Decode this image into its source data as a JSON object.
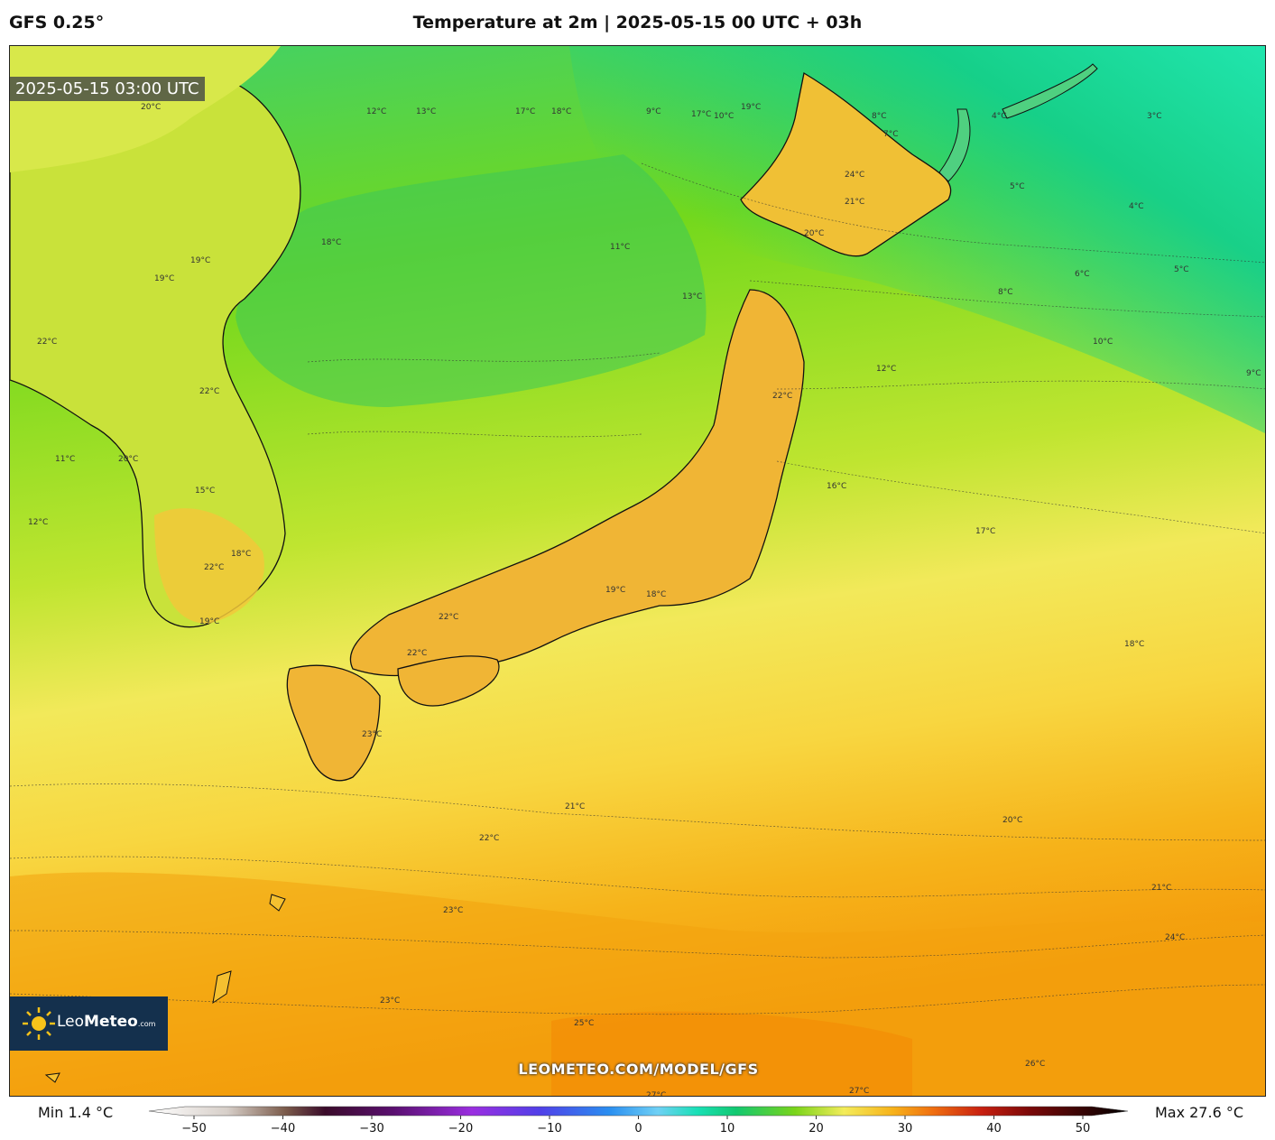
{
  "header": {
    "model": "GFS 0.25°",
    "title": "Temperature at 2m | 2025-05-15 00 UTC + 03h"
  },
  "map": {
    "valid_time": "2025-05-15 03:00 UTC",
    "watermark_url": "LEOMETEO.COM/MODEL/GFS",
    "logo": {
      "brand_a": "Leo",
      "brand_b": "Meteo",
      "suffix": ".com"
    },
    "isotherm_labels": [
      "20°C",
      "12°C",
      "13°C",
      "17°C",
      "18°C",
      "19°C",
      "17°C",
      "10°C",
      "9°C",
      "8°C",
      "7°C",
      "4°C",
      "3°C",
      "22°C",
      "20°C",
      "19°C",
      "18°C",
      "11°C",
      "13°C",
      "24°C",
      "21°C",
      "22°C",
      "20°C",
      "19°C",
      "6°C",
      "5°C",
      "8°C",
      "10°C",
      "12°C",
      "9°C",
      "22°C",
      "22°C",
      "16°C",
      "17°C",
      "11°C",
      "12°C",
      "15°C",
      "18°C",
      "22°C",
      "19°C",
      "18°C",
      "19°C",
      "22°C",
      "23°C",
      "21°C",
      "22°C",
      "23°C",
      "20°C",
      "21°C",
      "24°C",
      "23°C",
      "25°C",
      "26°C",
      "26°C",
      "27°C",
      "27°C",
      "27°C",
      "27°C",
      "26°C",
      "18°C",
      "4°C",
      "5°C"
    ]
  },
  "footer": {
    "min_label": "Min 1.4 °C",
    "max_label": "Max 27.6 °C",
    "colorbar_ticks": [
      "−50",
      "−40",
      "−30",
      "−20",
      "−10",
      "0",
      "10",
      "20",
      "30",
      "40",
      "50"
    ]
  },
  "colors": {
    "cold_sea": "#19d9a8",
    "mid": "#6dd51a",
    "warm": "#f7e85a",
    "hot": "#f5a10a",
    "land_warm": "#f2b435"
  }
}
